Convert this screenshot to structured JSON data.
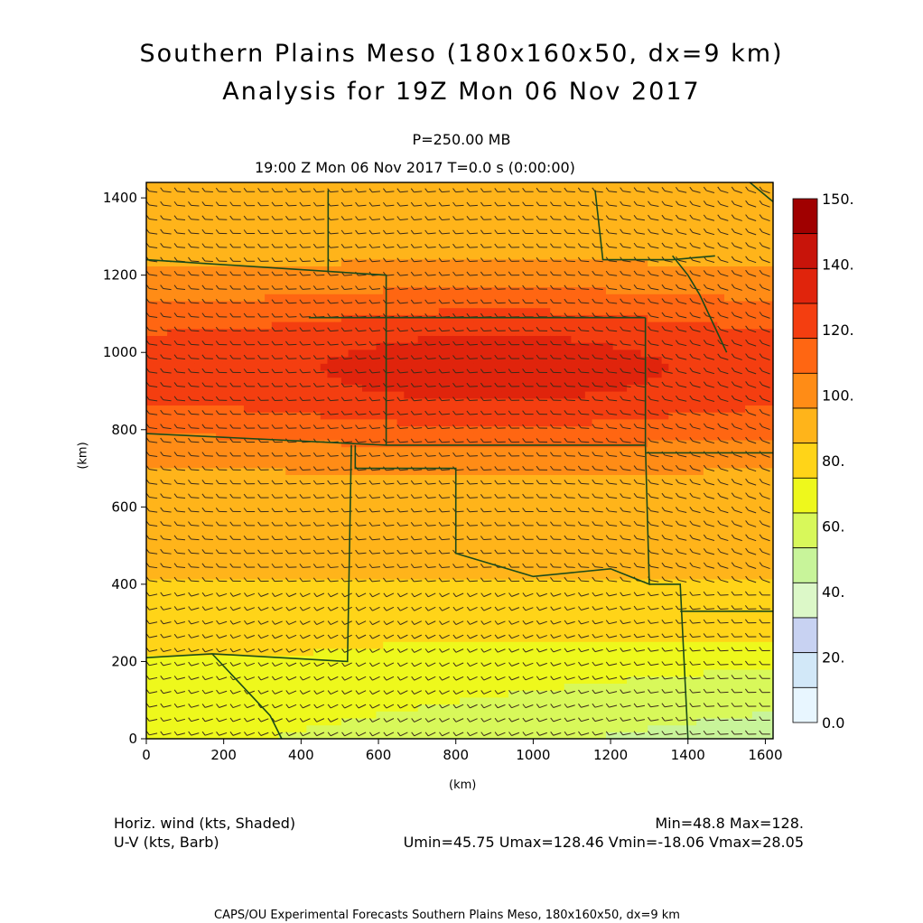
{
  "header": {
    "title_line1": "Southern Plains Meso (180x160x50, dx=9 km)",
    "title_line2": "Analysis for 19Z Mon 06 Nov 2017",
    "level": "P=250.00 MB",
    "valid_time": "19:00 Z Mon 06 Nov 2017    T=0.0 s (0:00:00)"
  },
  "footer": {
    "field_label": "Horiz. wind (kts, Shaded)",
    "vector_label": "U-V (kts, Barb)",
    "minmax": "Min=48.8 Max=128.",
    "uv_stats": "Umin=45.75 Umax=128.46 Vmin=-18.06 Vmax=28.05",
    "credit": "CAPS/OU Experimental Forecasts  Southern Plains Meso, 180x160x50, dx=9 km"
  },
  "chart_data": {
    "type": "heatmap",
    "title": "Horiz. wind (kts, Shaded)",
    "xlabel": "(km)",
    "ylabel": "(km)",
    "xlim": [
      0,
      1620
    ],
    "ylim": [
      0,
      1440
    ],
    "x_ticks": [
      0,
      200,
      400,
      600,
      800,
      1000,
      1200,
      1400,
      1600
    ],
    "y_ticks": [
      0,
      200,
      400,
      600,
      800,
      1000,
      1200,
      1400
    ],
    "colorbar": {
      "levels": [
        "0.0",
        "20.",
        "40.",
        "60.",
        "80.",
        "100.",
        "120.",
        "140.",
        "150."
      ],
      "bins": [
        {
          "min": 0,
          "max": 10,
          "color": "#e8f6ff"
        },
        {
          "min": 10,
          "max": 20,
          "color": "#d2e8f8"
        },
        {
          "min": 20,
          "max": 30,
          "color": "#c8d2f2"
        },
        {
          "min": 30,
          "max": 40,
          "color": "#dcf8c8"
        },
        {
          "min": 40,
          "max": 50,
          "color": "#c8f49a"
        },
        {
          "min": 50,
          "max": 60,
          "color": "#d8f85a"
        },
        {
          "min": 60,
          "max": 70,
          "color": "#eef81c"
        },
        {
          "min": 70,
          "max": 80,
          "color": "#ffd418"
        },
        {
          "min": 80,
          "max": 90,
          "color": "#ffb41a"
        },
        {
          "min": 90,
          "max": 100,
          "color": "#ff8c16"
        },
        {
          "min": 100,
          "max": 110,
          "color": "#ff6612"
        },
        {
          "min": 110,
          "max": 120,
          "color": "#f43e10"
        },
        {
          "min": 120,
          "max": 130,
          "color": "#e0240c"
        },
        {
          "min": 130,
          "max": 140,
          "color": "#c8140a"
        },
        {
          "min": 140,
          "max": 150,
          "color": "#a00000"
        }
      ]
    },
    "field_min": 48.8,
    "field_max": 128,
    "jet_core": {
      "x": 900,
      "y": 960,
      "speed": 128
    },
    "grid": false
  }
}
